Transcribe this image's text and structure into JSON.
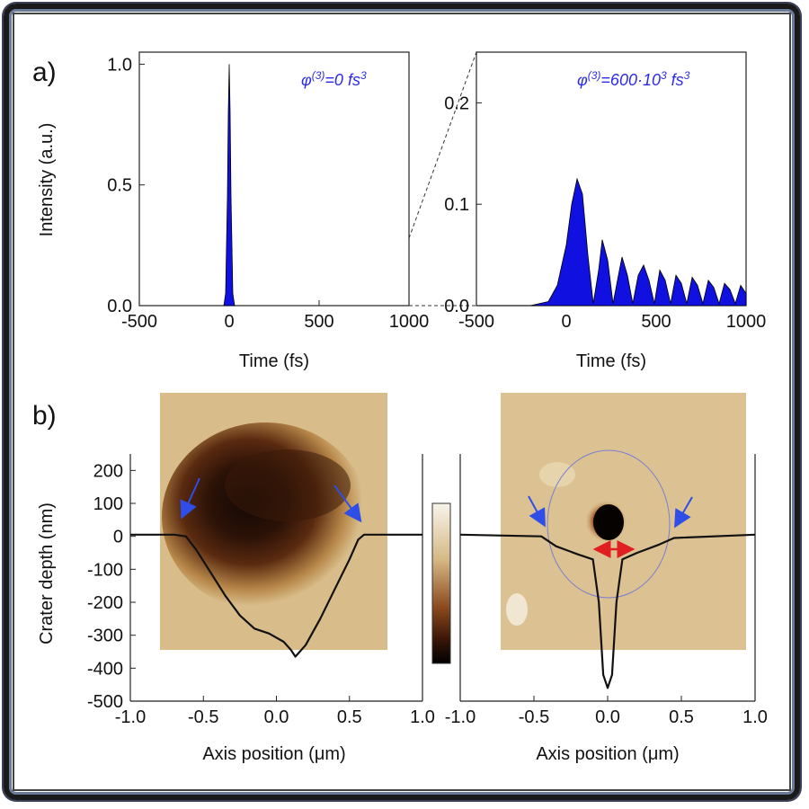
{
  "panel_labels": [
    "a)",
    "b)"
  ],
  "chart_data": [
    {
      "type": "area",
      "id": "a-left",
      "annotation": "φ(3)=0 fs3",
      "xlabel": "Time (fs)",
      "ylabel": "Intensity (a.u.)",
      "xlim": [
        -500,
        1000
      ],
      "ylim": [
        0,
        1.05
      ],
      "xticks": [
        -500,
        0,
        500,
        1000
      ],
      "yticks": [
        0.0,
        0.5,
        1.0
      ],
      "ytick_labels": [
        "0.0",
        "0.5",
        "1.0"
      ],
      "fill_color": "#1010e0",
      "series": [
        {
          "x": [
            -30,
            -20,
            -10,
            -5,
            0,
            5,
            10,
            20,
            30
          ],
          "values": [
            0.0,
            0.05,
            0.45,
            0.8,
            1.0,
            0.8,
            0.45,
            0.05,
            0.0
          ]
        }
      ]
    },
    {
      "type": "area",
      "id": "a-right",
      "annotation": "φ(3)=600·103 fs3",
      "xlabel": "Time (fs)",
      "ylabel": "",
      "xlim": [
        -500,
        1000
      ],
      "ylim": [
        0,
        0.25
      ],
      "xticks": [
        -500,
        0,
        500,
        1000
      ],
      "yticks": [
        0.0,
        0.1,
        0.2
      ],
      "ytick_labels": [
        "0.0",
        "0.1",
        "0.2"
      ],
      "fill_color": "#1010e0",
      "series": [
        {
          "x": [
            -500,
            -200,
            -100,
            -50,
            0,
            30,
            60,
            90,
            120,
            150,
            180,
            200,
            230,
            260,
            290,
            310,
            340,
            370,
            400,
            430,
            460,
            490,
            520,
            550,
            580,
            610,
            640,
            670,
            700,
            730,
            760,
            790,
            820,
            850,
            880,
            910,
            940,
            970,
            1000
          ],
          "values": [
            0.0,
            0.0,
            0.004,
            0.02,
            0.06,
            0.1,
            0.125,
            0.11,
            0.05,
            0.002,
            0.035,
            0.065,
            0.045,
            0.002,
            0.03,
            0.048,
            0.03,
            0.002,
            0.03,
            0.04,
            0.025,
            0.002,
            0.035,
            0.025,
            0.002,
            0.03,
            0.022,
            0.002,
            0.028,
            0.02,
            0.002,
            0.025,
            0.018,
            0.002,
            0.022,
            0.016,
            0.002,
            0.02,
            0.012
          ]
        }
      ]
    },
    {
      "type": "line",
      "id": "b-left",
      "xlabel": "Axis position (μm)",
      "ylabel": "Crater depth (nm)",
      "xlim": [
        -1.0,
        1.0
      ],
      "ylim": [
        -500,
        250
      ],
      "xticks": [
        -1.0,
        -0.5,
        0.0,
        0.5,
        1.0
      ],
      "xtick_labels": [
        "-1.0",
        "-0.5",
        "0.0",
        "0.5",
        "1.0"
      ],
      "yticks": [
        -500,
        -400,
        -300,
        -200,
        -100,
        0,
        100,
        200
      ],
      "series": [
        {
          "x": [
            -1.0,
            -0.7,
            -0.62,
            -0.55,
            -0.45,
            -0.35,
            -0.25,
            -0.15,
            -0.05,
            0.05,
            0.1,
            0.13,
            0.2,
            0.3,
            0.4,
            0.5,
            0.56,
            0.6,
            0.65,
            1.0
          ],
          "values": [
            5,
            5,
            0,
            -40,
            -110,
            -180,
            -240,
            -280,
            -295,
            -320,
            -345,
            -365,
            -330,
            -250,
            -160,
            -70,
            -10,
            5,
            5,
            5
          ]
        }
      ]
    },
    {
      "type": "line",
      "id": "b-right",
      "xlabel": "Axis position (μm)",
      "ylabel": "",
      "xlim": [
        -1.0,
        1.0
      ],
      "ylim": [
        -500,
        250
      ],
      "xticks": [
        -1.0,
        -0.5,
        0.0,
        0.5,
        1.0
      ],
      "xtick_labels": [
        "-1.0",
        "-0.5",
        "0.0",
        "0.5",
        "1.0"
      ],
      "yticks": [],
      "series": [
        {
          "x": [
            -1.0,
            -0.45,
            -0.35,
            -0.2,
            -0.1,
            -0.06,
            -0.03,
            0.0,
            0.03,
            0.06,
            0.1,
            0.2,
            0.35,
            0.45,
            1.0
          ],
          "values": [
            5,
            0,
            -30,
            -55,
            -70,
            -200,
            -420,
            -460,
            -420,
            -200,
            -70,
            -50,
            -25,
            -5,
            5
          ]
        }
      ]
    }
  ],
  "colorbar": {
    "top_color": "#f5efe2",
    "mid_color": "#8b4a1e",
    "bottom_color": "#000000"
  },
  "afm_image_colors": {
    "background": "#d8bd8a",
    "crater": "#2a1208"
  }
}
